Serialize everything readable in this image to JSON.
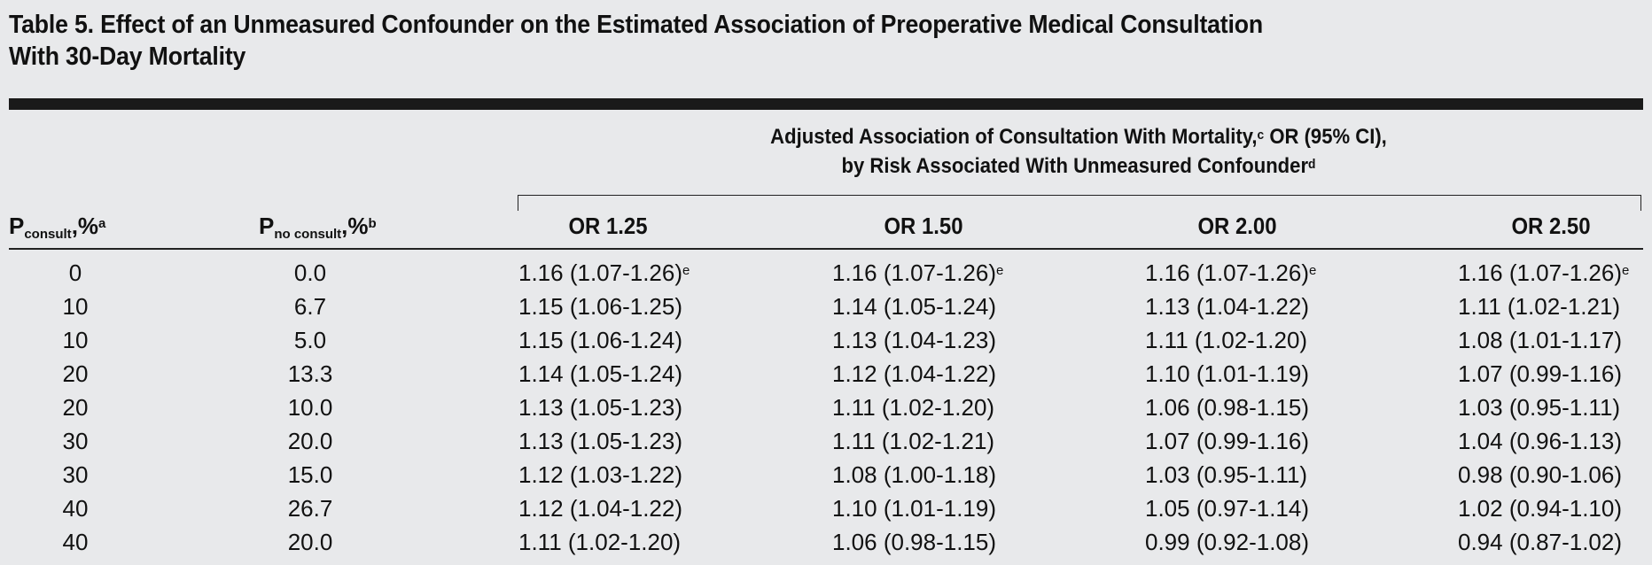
{
  "title_line1": "Table 5. Effect of an Unmeasured Confounder on the Estimated Association of Preoperative Medical Consultation",
  "title_line2": "With 30-Day Mortality",
  "spanner": {
    "line1": "Adjusted Association of Consultation With Mortality,",
    "line1_sup": "c",
    "line1_tail": " OR (95% CI),",
    "line2": "by Risk Associated With Unmeasured Confounder",
    "line2_sup": "d"
  },
  "columns": {
    "p_consult": {
      "main": "P",
      "sub": "consult",
      "tail": ",%",
      "sup": "a"
    },
    "p_no_consult": {
      "main": "P",
      "sub": "no consult",
      "tail": ",%",
      "sup": "b"
    },
    "or_heads": [
      "OR 1.25",
      "OR 1.50",
      "OR 2.00",
      "OR 2.50"
    ]
  },
  "footnote_e": "e",
  "rows": [
    {
      "p_consult": "0",
      "p_no_consult": "0.0",
      "or": [
        "1.16 (1.07-1.26)",
        "1.16 (1.07-1.26)",
        "1.16 (1.07-1.26)",
        "1.16 (1.07-1.26)"
      ],
      "sup": true
    },
    {
      "p_consult": "10",
      "p_no_consult": "6.7",
      "or": [
        "1.15 (1.06-1.25)",
        "1.14 (1.05-1.24)",
        "1.13 (1.04-1.22)",
        "1.11 (1.02-1.21)"
      ]
    },
    {
      "p_consult": "10",
      "p_no_consult": "5.0",
      "or": [
        "1.15 (1.06-1.24)",
        "1.13 (1.04-1.23)",
        "1.11 (1.02-1.20)",
        "1.08 (1.01-1.17)"
      ]
    },
    {
      "p_consult": "20",
      "p_no_consult": "13.3",
      "or": [
        "1.14 (1.05-1.24)",
        "1.12 (1.04-1.22)",
        "1.10 (1.01-1.19)",
        "1.07 (0.99-1.16)"
      ]
    },
    {
      "p_consult": "20",
      "p_no_consult": "10.0",
      "or": [
        "1.13 (1.05-1.23)",
        "1.11 (1.02-1.20)",
        "1.06 (0.98-1.15)",
        "1.03 (0.95-1.11)"
      ]
    },
    {
      "p_consult": "30",
      "p_no_consult": "20.0",
      "or": [
        "1.13 (1.05-1.23)",
        "1.11 (1.02-1.21)",
        "1.07 (0.99-1.16)",
        "1.04 (0.96-1.13)"
      ]
    },
    {
      "p_consult": "30",
      "p_no_consult": "15.0",
      "or": [
        "1.12 (1.03-1.22)",
        "1.08 (1.00-1.18)",
        "1.03 (0.95-1.11)",
        "0.98 (0.90-1.06)"
      ]
    },
    {
      "p_consult": "40",
      "p_no_consult": "26.7",
      "or": [
        "1.12 (1.04-1.22)",
        "1.10 (1.01-1.19)",
        "1.05 (0.97-1.14)",
        "1.02 (0.94-1.10)"
      ]
    },
    {
      "p_consult": "40",
      "p_no_consult": "20.0",
      "or": [
        "1.11 (1.02-1.20)",
        "1.06 (0.98-1.15)",
        "0.99 (0.92-1.08)",
        "0.94 (0.87-1.02)"
      ]
    }
  ]
}
